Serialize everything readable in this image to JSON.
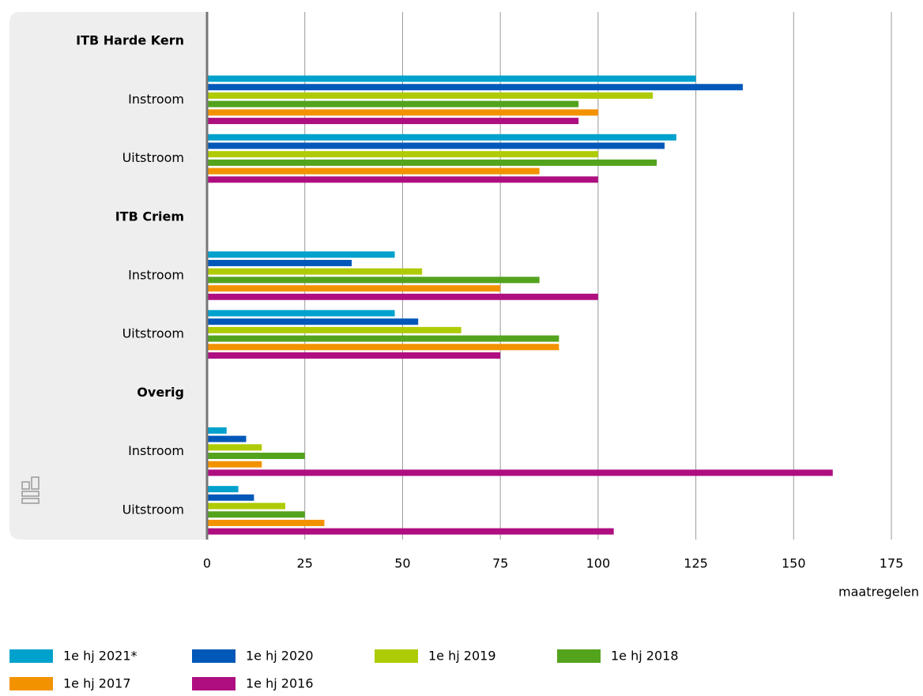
{
  "chart_data": {
    "type": "hbar",
    "categories": [
      "ITB Harde Kern",
      "Instroom",
      "Uitstroom",
      "ITB Criem",
      "Instroom",
      "Uitstroom",
      "Overig",
      "Instroom",
      "Uitstroom"
    ],
    "series": [
      {
        "name": "1e hj 2021*",
        "color": "#00a1cd",
        "values": [
          null,
          125,
          120,
          null,
          48,
          48,
          null,
          5,
          8
        ]
      },
      {
        "name": "1e hj 2020",
        "color": "#0058b8",
        "values": [
          null,
          137,
          117,
          null,
          37,
          54,
          null,
          10,
          12
        ]
      },
      {
        "name": "1e hj 2019",
        "color": "#afcb05",
        "values": [
          null,
          114,
          100,
          null,
          55,
          65,
          null,
          14,
          20
        ]
      },
      {
        "name": "1e hj 2018",
        "color": "#53a31d",
        "values": [
          null,
          95,
          115,
          null,
          85,
          90,
          null,
          25,
          25
        ]
      },
      {
        "name": "1e hj 2017",
        "color": "#f39200",
        "values": [
          null,
          100,
          85,
          null,
          75,
          90,
          null,
          14,
          30
        ]
      },
      {
        "name": "1e hj 2016",
        "color": "#af0e80",
        "values": [
          null,
          95,
          100,
          null,
          100,
          75,
          null,
          160,
          104
        ]
      }
    ],
    "xlim": [
      0,
      175
    ],
    "xticks": [
      0,
      25,
      50,
      75,
      100,
      125,
      150,
      175
    ],
    "xlabel": "maatregelen",
    "grid": true
  }
}
